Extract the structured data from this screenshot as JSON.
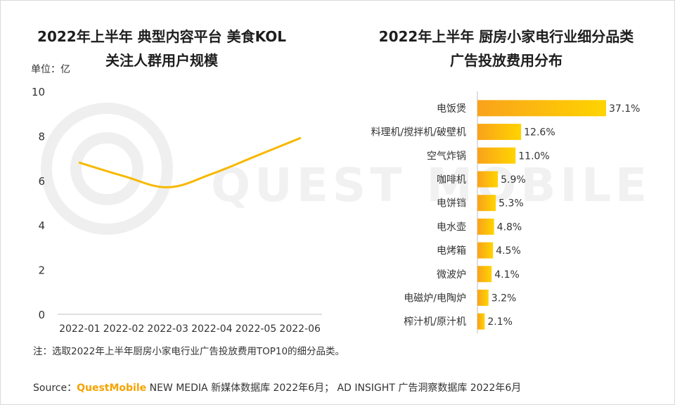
{
  "watermark": "QUEST MOBILE",
  "unit_label": "单位：亿",
  "note": "注：选取2022年上半年厨房小家电行业广告投放费用TOP10的细分品类。",
  "source": {
    "prefix": "Source：",
    "brand": "QuestMobile",
    "rest": " NEW MEDIA 新媒体数据库 2022年6月； AD INSIGHT 广告洞察数据库 2022年6月"
  },
  "colors": {
    "line": "#f7b800",
    "bar_start": "#f9a21b",
    "bar_end": "#ffd400"
  },
  "chart_data": [
    {
      "type": "line",
      "title_line1": "2022年上半年 典型内容平台 美食KOL",
      "title_line2": "关注人群用户规模",
      "x": [
        "2022-01",
        "2022-02",
        "2022-03",
        "2022-04",
        "2022-05",
        "2022-06"
      ],
      "series": [
        {
          "values": [
            6.8,
            6.2,
            5.7,
            6.3,
            7.1,
            7.9
          ]
        }
      ],
      "ylim": [
        0,
        10
      ],
      "yticks": [
        0,
        2,
        4,
        6,
        8,
        10
      ],
      "grid": false
    },
    {
      "type": "bar",
      "orientation": "horizontal",
      "title_line1": "2022年上半年 厨房小家电行业细分品类",
      "title_line2": "广告投放费用分布",
      "categories": [
        "电饭煲",
        "料理机/搅拌机/破壁机",
        "空气炸锅",
        "咖啡机",
        "电饼铛",
        "电水壶",
        "电烤箱",
        "微波炉",
        "电磁炉/电陶炉",
        "榨汁机/原汁机"
      ],
      "values": [
        37.1,
        12.6,
        11.0,
        5.9,
        5.3,
        4.8,
        4.5,
        4.1,
        3.2,
        2.1
      ],
      "value_labels": [
        "37.1%",
        "12.6%",
        "11.0%",
        "5.9%",
        "5.3%",
        "4.8%",
        "4.5%",
        "4.1%",
        "3.2%",
        "2.1%"
      ],
      "xlim": [
        0,
        37.1
      ]
    }
  ]
}
